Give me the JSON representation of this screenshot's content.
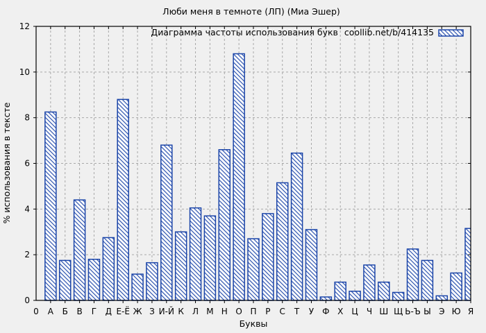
{
  "window": {
    "background": "#f0f0f0"
  },
  "chart_data": {
    "type": "bar",
    "title": "Люби меня в темноте (ЛП) (Миа Эшер)",
    "legend": {
      "label": "Диаграмма частоты использования букв",
      "source": "coollib.net/b/414135",
      "position": "top-right-inside",
      "swatch": "blue-diagonal-hatch"
    },
    "xlabel": "Буквы",
    "ylabel": "% использования в тексте",
    "x_origin_tick": "0",
    "categories": [
      "А",
      "Б",
      "В",
      "Г",
      "Д",
      "Е-Ё",
      "Ж",
      "З",
      "И-Й",
      "К",
      "Л",
      "М",
      "Н",
      "О",
      "П",
      "Р",
      "С",
      "Т",
      "У",
      "Ф",
      "Х",
      "Ц",
      "Ч",
      "Ш",
      "Щ",
      "Ь-Ъ",
      "Ы",
      "Э",
      "Ю",
      "Я"
    ],
    "values": [
      8.25,
      1.75,
      4.4,
      1.8,
      2.75,
      8.8,
      1.15,
      1.65,
      6.8,
      3.0,
      4.05,
      3.7,
      6.6,
      10.8,
      2.7,
      3.8,
      5.15,
      6.45,
      3.1,
      0.15,
      0.8,
      0.4,
      1.55,
      0.8,
      0.35,
      2.25,
      1.75,
      0.2,
      1.2,
      3.15
    ],
    "ylim": [
      0,
      12
    ],
    "yticks": [
      0,
      2,
      4,
      6,
      8,
      10,
      12
    ],
    "grid": true,
    "hatch": "diagonal-down",
    "colors": {
      "bar_stroke": "#1a44a8",
      "bar_fill": "#ffffff",
      "grid": "#a8a8a8",
      "axis": "#000000",
      "background": "#f0f0f0"
    }
  }
}
